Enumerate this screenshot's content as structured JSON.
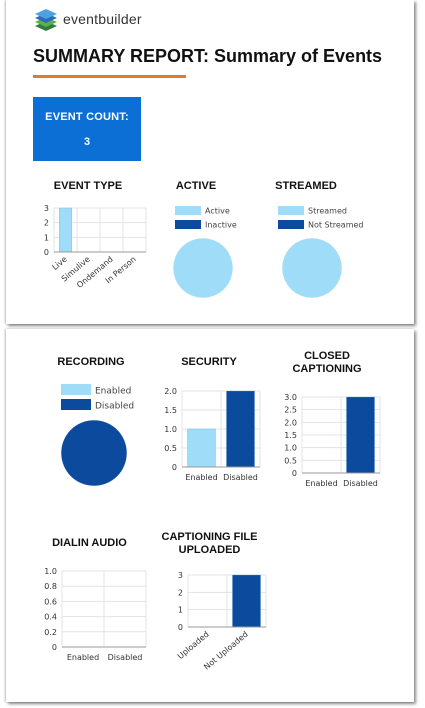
{
  "brand": {
    "name": "eventbuilder",
    "logo_icon": "stacked-layers-logo"
  },
  "report": {
    "title": "SUMMARY REPORT: Summary of Events"
  },
  "event_count": {
    "label": "EVENT COUNT:",
    "value": "3"
  },
  "colors": {
    "light_blue": "#9fdcf7",
    "dark_blue": "#0b4a9c",
    "card_blue": "#0b6fd6",
    "accent_orange": "#e07b2e",
    "gridline": "#e3e3e3"
  },
  "chart_data": [
    {
      "id": "event_type",
      "type": "bar",
      "title": "EVENT TYPE",
      "categories": [
        "Live",
        "Simulive",
        "Ondemand",
        "In Person"
      ],
      "values": [
        3,
        0,
        0,
        0
      ],
      "ylim": [
        0,
        3
      ],
      "yticks": [
        "0",
        "1",
        "2",
        "3"
      ],
      "colors": [
        "#9fdcf7",
        "#9fdcf7",
        "#9fdcf7",
        "#9fdcf7"
      ],
      "label_rotation": "angled"
    },
    {
      "id": "active",
      "type": "pie",
      "title": "ACTIVE",
      "labels": [
        "Active",
        "Inactive"
      ],
      "values": [
        3,
        0
      ],
      "colors": [
        "#9fdcf7",
        "#0b4a9c"
      ],
      "legend": "top"
    },
    {
      "id": "streamed",
      "type": "pie",
      "title": "STREAMED",
      "labels": [
        "Streamed",
        "Not Streamed"
      ],
      "values": [
        3,
        0
      ],
      "colors": [
        "#9fdcf7",
        "#0b4a9c"
      ],
      "legend": "top"
    },
    {
      "id": "recording",
      "type": "pie",
      "title": "RECORDING",
      "labels": [
        "Enabled",
        "Disabled"
      ],
      "values": [
        0,
        3
      ],
      "colors": [
        "#9fdcf7",
        "#0b4a9c"
      ],
      "legend": "top"
    },
    {
      "id": "security",
      "type": "bar",
      "title": "SECURITY",
      "categories": [
        "Enabled",
        "Disabled"
      ],
      "values": [
        1,
        2
      ],
      "ylim": [
        0,
        2
      ],
      "yticks": [
        "0",
        "0.5",
        "1.0",
        "1.5",
        "2.0"
      ],
      "colors": [
        "#9fdcf7",
        "#0b4a9c"
      ]
    },
    {
      "id": "closed_captioning",
      "type": "bar",
      "title": "CLOSED CAPTIONING",
      "categories": [
        "Enabled",
        "Disabled"
      ],
      "values": [
        0,
        3
      ],
      "ylim": [
        0,
        3
      ],
      "yticks": [
        "0",
        "0.5",
        "1.0",
        "1.5",
        "2.0",
        "2.5",
        "3.0"
      ],
      "colors": [
        "#9fdcf7",
        "#0b4a9c"
      ]
    },
    {
      "id": "dialin_audio",
      "type": "bar",
      "title": "DIALIN AUDIO",
      "categories": [
        "Enabled",
        "Disabled"
      ],
      "values": [
        0,
        0
      ],
      "ylim": [
        0,
        1
      ],
      "yticks": [
        "0",
        "0.2",
        "0.4",
        "0.6",
        "0.8",
        "1.0"
      ],
      "colors": [
        "#9fdcf7",
        "#0b4a9c"
      ]
    },
    {
      "id": "captioning_file",
      "type": "bar",
      "title": "CAPTIONING FILE UPLOADED",
      "categories": [
        "Uploaded",
        "Not Uploaded"
      ],
      "values": [
        0,
        3
      ],
      "ylim": [
        0,
        3
      ],
      "yticks": [
        "0",
        "1",
        "2",
        "3"
      ],
      "colors": [
        "#9fdcf7",
        "#0b4a9c"
      ],
      "label_rotation": "angled"
    }
  ]
}
